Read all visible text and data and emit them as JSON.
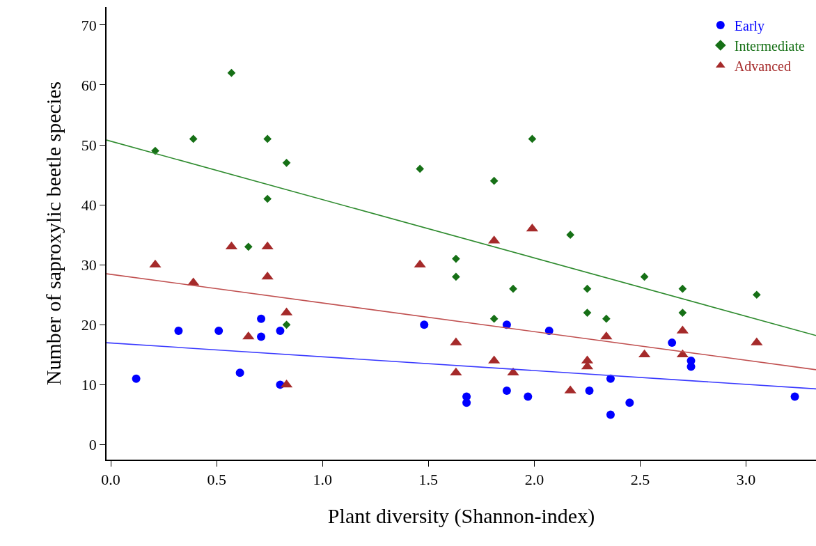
{
  "chart_data": {
    "type": "scatter",
    "xlabel": "Plant diversity (Shannon-index)",
    "ylabel": "Number of saproxylic beetle species",
    "xlim": [
      -0.02,
      3.33
    ],
    "xticks": [
      {
        "value": 0,
        "label": "0.0"
      },
      {
        "value": 0.5,
        "label": "0.5"
      },
      {
        "value": 1,
        "label": "1.0"
      },
      {
        "value": 1.5,
        "label": "1.5"
      },
      {
        "value": 2,
        "label": "2.0"
      },
      {
        "value": 2.5,
        "label": "2.5"
      },
      {
        "value": 3,
        "label": "3.0"
      }
    ],
    "ylim": [
      -2.5,
      73
    ],
    "yticks": [
      0,
      10,
      20,
      30,
      40,
      50,
      60,
      70
    ],
    "grid": false,
    "legend": "top right",
    "series": [
      {
        "name": "Early",
        "color": "#0000ff",
        "marker": "circle",
        "x": [
          0.12,
          0.32,
          0.51,
          0.61,
          0.71,
          0.71,
          0.8,
          0.8,
          1.48,
          1.68,
          1.68,
          1.87,
          1.87,
          1.97,
          2.07,
          2.26,
          2.36,
          2.36,
          2.45,
          2.65,
          2.74,
          2.74,
          3.23
        ],
        "values": [
          11,
          19,
          19,
          12,
          21,
          18,
          19,
          10,
          20,
          8,
          7,
          9,
          20,
          8,
          19,
          9,
          11,
          5,
          7,
          17,
          14,
          13,
          8
        ]
      },
      {
        "name": "Intermediate",
        "color": "#167016",
        "marker": "diamond",
        "x": [
          0.21,
          0.39,
          0.57,
          0.65,
          0.74,
          0.74,
          0.83,
          0.83,
          1.46,
          1.63,
          1.63,
          1.81,
          1.81,
          1.9,
          1.99,
          2.17,
          2.25,
          2.25,
          2.34,
          2.52,
          2.7,
          2.7,
          3.05
        ],
        "values": [
          49,
          51,
          62,
          33,
          51,
          41,
          47,
          20,
          46,
          31,
          28,
          44,
          21,
          26,
          51,
          35,
          26,
          22,
          21,
          28,
          26,
          22,
          25
        ]
      },
      {
        "name": "Advanced",
        "color": "#a52a2a",
        "marker": "triangle",
        "x": [
          0.21,
          0.39,
          0.57,
          0.65,
          0.74,
          0.74,
          0.83,
          0.83,
          1.46,
          1.63,
          1.63,
          1.81,
          1.81,
          1.9,
          1.99,
          2.17,
          2.25,
          2.25,
          2.34,
          2.52,
          2.7,
          2.7,
          3.05
        ],
        "values": [
          30,
          27,
          33,
          18,
          33,
          28,
          22,
          10,
          30,
          17,
          12,
          34,
          14,
          12,
          36,
          9,
          14,
          13,
          18,
          15,
          19,
          15,
          17
        ]
      },
      {
        "type": "line",
        "color": "#3a3aff",
        "marker": "none",
        "x": [
          -0.02,
          3.33
        ],
        "values": [
          17,
          9.3
        ]
      },
      {
        "type": "line",
        "color": "#2e8b2e",
        "marker": "none",
        "x": [
          -0.02,
          3.33
        ],
        "values": [
          50.8,
          18.2
        ]
      },
      {
        "type": "line",
        "color": "#c05050",
        "marker": "none",
        "x": [
          -0.02,
          3.33
        ],
        "values": [
          28.5,
          12.5
        ]
      }
    ]
  }
}
